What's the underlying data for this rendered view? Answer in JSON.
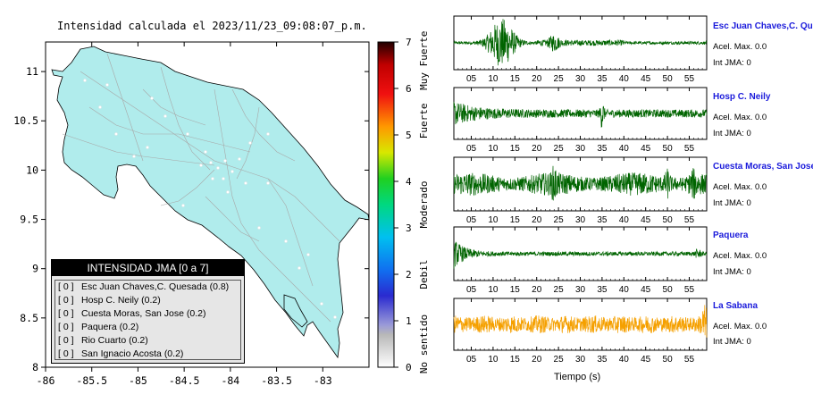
{
  "map": {
    "title": "Intensidad calculada el 2023/11/23_09:08:07_p.m.",
    "lon_ticks": [
      "-86",
      "-85.5",
      "-85",
      "-84.5",
      "-84",
      "-83.5",
      "-83"
    ],
    "lat_ticks": [
      "11",
      "10.5",
      "10",
      "9.5",
      "9",
      "8.5",
      "8"
    ]
  },
  "colorbar": {
    "ticks": [
      "0",
      "1",
      "2",
      "3",
      "4",
      "5",
      "6",
      "7"
    ],
    "labels": [
      "No sentido",
      "Debil",
      "Moderado",
      "Fuerte",
      "Muy Fuerte"
    ]
  },
  "legend": {
    "title": "INTENSIDAD JMA [0 a 7]",
    "rows": [
      {
        "level": "[ 0 ]",
        "text": "Esc Juan Chaves,C. Quesada (0.8)"
      },
      {
        "level": "[ 0 ]",
        "text": "Hosp C. Neily (0.2)"
      },
      {
        "level": "[ 0 ]",
        "text": "Cuesta Moras, San Jose (0.2)"
      },
      {
        "level": "[ 0 ]",
        "text": "Paquera (0.2)"
      },
      {
        "level": "[ 0 ]",
        "text": "Rio Cuarto (0.2)"
      },
      {
        "level": "[ 0 ]",
        "text": "San Ignacio Acosta (0.2)"
      }
    ]
  },
  "stations": [
    {
      "name": "Esc Juan Chaves,C. Quesada",
      "acel": "Acel. Max. 0.0",
      "jma": "Int JMA: 0",
      "color": "#006400"
    },
    {
      "name": "Hosp C. Neily",
      "acel": "Acel. Max. 0.0",
      "jma": "Int JMA: 0",
      "color": "#006400"
    },
    {
      "name": "Cuesta Moras, San Jose",
      "acel": "Acel. Max. 0.0",
      "jma": "Int JMA: 0",
      "color": "#006400"
    },
    {
      "name": "Paquera",
      "acel": "Acel. Max. 0.0",
      "jma": "Int JMA: 0",
      "color": "#006400"
    },
    {
      "name": "La Sabana",
      "acel": "Acel. Max. 0.0",
      "jma": "Int JMA: 0",
      "color": "#f5a000"
    }
  ],
  "seismo": {
    "time_ticks": [
      "05",
      "10",
      "15",
      "20",
      "25",
      "30",
      "35",
      "40",
      "45",
      "50",
      "55"
    ],
    "xlabel": "Tiempo (s)"
  },
  "chart_data": {
    "type": "line",
    "x_unit": "s",
    "xlim": [
      1,
      59
    ],
    "series": [
      {
        "name": "Esc Juan Chaves,C. Quesada"
      },
      {
        "name": "Hosp C. Neily"
      },
      {
        "name": "Cuesta Moras, San Jose"
      },
      {
        "name": "Paquera"
      },
      {
        "name": "La Sabana"
      }
    ]
  },
  "colors": {
    "land": "#b0ecec",
    "border": "#000000",
    "roads": "#a8a8a8"
  }
}
